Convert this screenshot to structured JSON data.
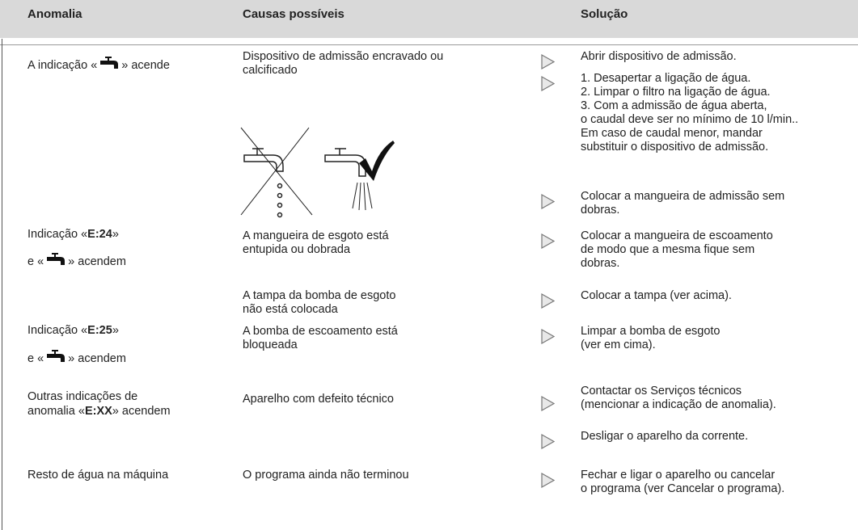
{
  "header": {
    "anomaly": "Anomalia",
    "causes": "Causas possíveis",
    "solution": "Solução"
  },
  "rows": [
    {
      "anomaly": [
        [
          "A indicação «",
          "» acende"
        ]
      ],
      "causes": [
        [
          "Dispositivo de admissão encravado ou",
          "calcificado"
        ]
      ],
      "solutions": [
        [
          "Abrir dispositivo de admissão."
        ],
        [
          "1. Desapertar a ligação de água.",
          "2. Limpar o filtro na ligação de água.",
          "3. Com a admissão de água aberta,",
          "o caudal deve ser no mínimo de 10 l/min..",
          "Em caso de caudal menor, mandar",
          "substituir o dispositivo de admissão."
        ],
        [
          "Colocar a mangueira de admissão sem",
          "dobras."
        ]
      ]
    },
    {
      "anomaly": [
        [
          "Indicação «",
          {
            "strong": "E:24"
          },
          "»"
        ],
        [
          "e «",
          "» acendem"
        ]
      ],
      "causes": [
        [
          "A mangueira de esgoto está",
          "entupida ou dobrada"
        ],
        [
          "A tampa da bomba de esgoto",
          "não está colocada"
        ]
      ],
      "solutions": [
        [
          "Colocar a mangueira de escoamento",
          "de modo que a mesma fique sem",
          "dobras."
        ],
        [
          "Colocar a tampa (ver acima)."
        ]
      ]
    },
    {
      "anomaly": [
        [
          "Indicação «",
          {
            "strong": "E:25"
          },
          "»"
        ],
        [
          "e «",
          "» acendem"
        ]
      ],
      "causes": [
        [
          "A bomba de escoamento está",
          "bloqueada"
        ]
      ],
      "solutions": [
        [
          "Limpar a bomba de esgoto",
          "(ver em cima)."
        ]
      ]
    },
    {
      "anomaly": [
        [
          "Outras indicações de"
        ],
        [
          "anomalia «",
          {
            "strong": "E:XX"
          },
          "» acendem"
        ]
      ],
      "causes": [
        [
          "Aparelho com defeito técnico"
        ]
      ],
      "solutions": [
        [
          "Contactar os Serviços técnicos",
          "(mencionar a indicação de anomalia)."
        ],
        [
          "Desligar o aparelho da corrente."
        ]
      ]
    },
    {
      "anomaly": [
        [
          "Resto de água na máquina"
        ]
      ],
      "causes": [
        [
          "O programa ainda não terminou"
        ]
      ],
      "solutions": [
        [
          "Fechar e ligar o aparelho ou cancelar",
          "o programa (ver Cancelar o programa)."
        ]
      ]
    }
  ]
}
